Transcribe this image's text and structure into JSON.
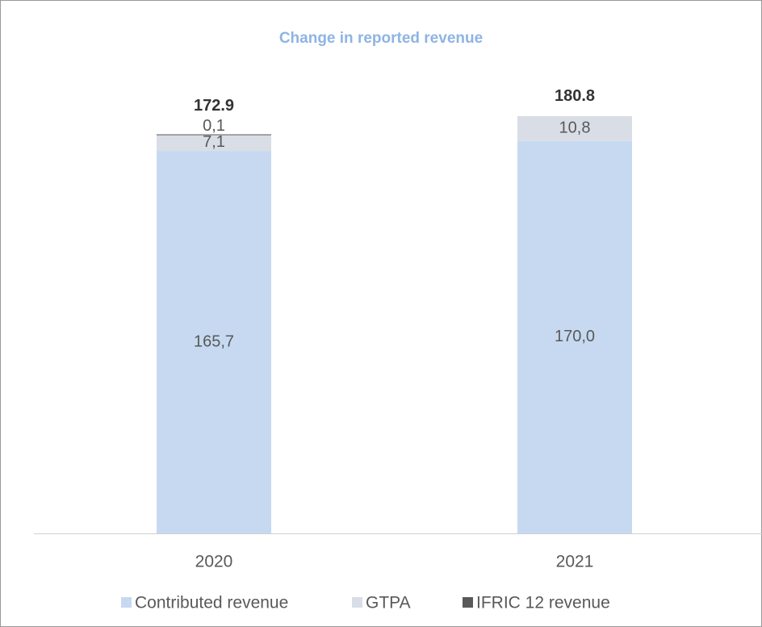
{
  "chart_data": {
    "type": "stacked_bar",
    "title": "Change in reported revenue",
    "categories": [
      "2020",
      "2021"
    ],
    "series": [
      {
        "name": "Contributed revenue",
        "color": "#c6d9f1",
        "values": [
          165.7,
          170.0
        ],
        "value_labels": [
          "165,7",
          "170,0"
        ]
      },
      {
        "name": "GTPA",
        "color": "#d9dde6",
        "values": [
          7.1,
          10.8
        ],
        "value_labels": [
          "7,1",
          "10,8"
        ]
      },
      {
        "name": "IFRIC 12 revenue",
        "color": "#595959",
        "values": [
          0.1,
          null
        ],
        "value_labels": [
          "0,1",
          null
        ]
      }
    ],
    "totals": [
      172.9,
      180.8
    ],
    "ylim": [
      0,
      200
    ],
    "legend": "bottom"
  }
}
